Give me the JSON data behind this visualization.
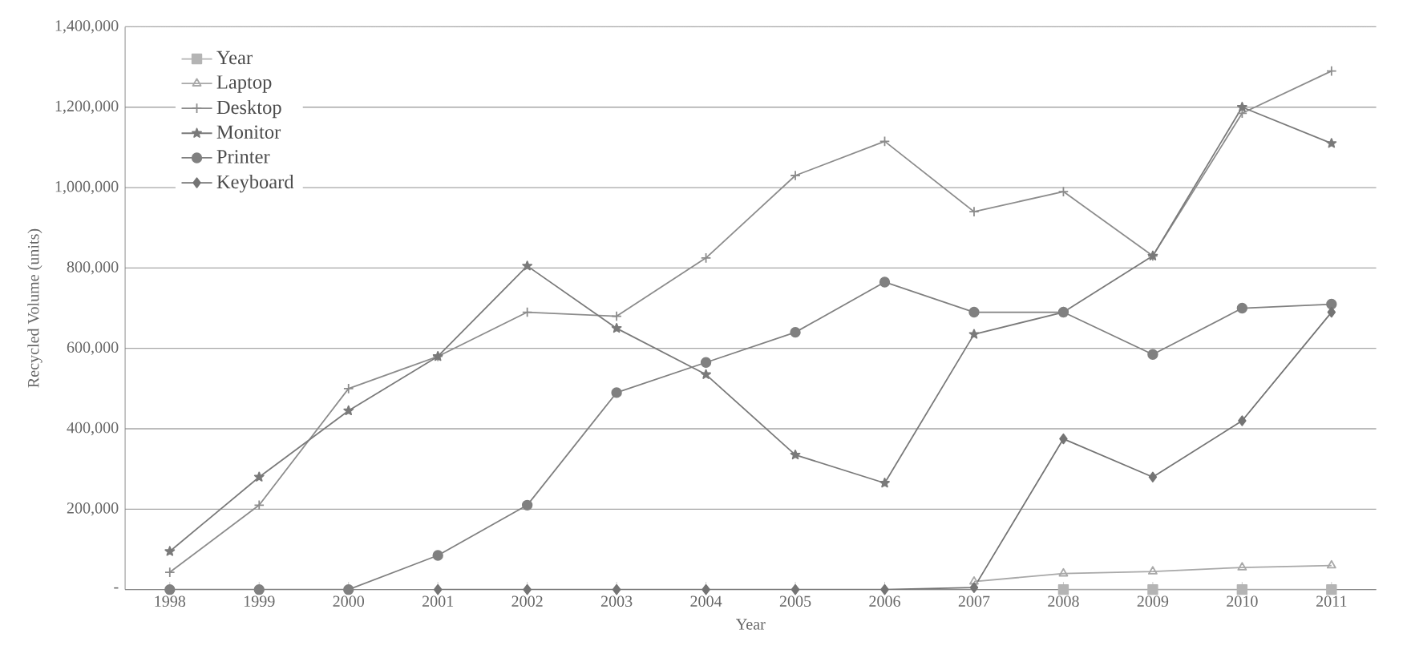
{
  "chart_data": {
    "type": "line",
    "xlabel": "Year",
    "ylabel": "Recycled Volume (units)",
    "categories": [
      "1998",
      "1999",
      "2000",
      "2001",
      "2002",
      "2003",
      "2004",
      "2005",
      "2006",
      "2007",
      "2008",
      "2009",
      "2010",
      "2011"
    ],
    "ylim": [
      0,
      1400000
    ],
    "yticks": [
      {
        "value": 0,
        "label": "-"
      },
      {
        "value": 200000,
        "label": "200,000"
      },
      {
        "value": 400000,
        "label": "400,000"
      },
      {
        "value": 600000,
        "label": "600,000"
      },
      {
        "value": 800000,
        "label": "800,000"
      },
      {
        "value": 1000000,
        "label": "1,000,000"
      },
      {
        "value": 1200000,
        "label": "1,200,000"
      },
      {
        "value": 1400000,
        "label": "1,400,000"
      }
    ],
    "grid": "y",
    "legend": "top left",
    "series": [
      {
        "name": "Year",
        "color": "#b4b4b4",
        "marker": "square",
        "values": [
          null,
          null,
          null,
          null,
          null,
          null,
          null,
          null,
          null,
          null,
          0,
          0,
          0,
          0
        ]
      },
      {
        "name": "Laptop",
        "color": "#a8a8a8",
        "marker": "triangle",
        "values": [
          null,
          null,
          null,
          null,
          null,
          null,
          null,
          null,
          null,
          20000,
          40000,
          45000,
          55000,
          60000
        ]
      },
      {
        "name": "Desktop",
        "color": "#8c8c8c",
        "marker": "cross",
        "values": [
          43000,
          210000,
          500000,
          580000,
          690000,
          680000,
          825000,
          1030000,
          1115000,
          940000,
          990000,
          830000,
          1185000,
          1290000
        ]
      },
      {
        "name": "Monitor",
        "color": "#7a7a7a",
        "marker": "star",
        "values": [
          95000,
          280000,
          445000,
          580000,
          805000,
          650000,
          535000,
          335000,
          265000,
          635000,
          690000,
          830000,
          1200000,
          1110000
        ]
      },
      {
        "name": "Printer",
        "color": "#808080",
        "marker": "circle",
        "values": [
          0,
          0,
          0,
          85000,
          210000,
          490000,
          565000,
          640000,
          765000,
          690000,
          690000,
          585000,
          700000,
          710000
        ]
      },
      {
        "name": "Keyboard",
        "color": "#747474",
        "marker": "diamond",
        "values": [
          null,
          null,
          null,
          0,
          0,
          0,
          0,
          0,
          0,
          5000,
          375000,
          280000,
          420000,
          690000
        ]
      }
    ]
  }
}
